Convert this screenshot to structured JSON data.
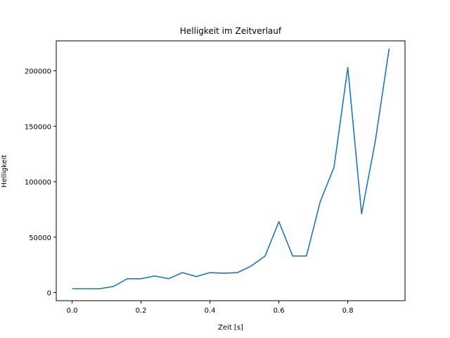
{
  "chart_data": {
    "type": "line",
    "title": "Helligkeit im Zeitverlauf",
    "xlabel": "Zeit [s]",
    "ylabel": "Helligkeit",
    "xlim": [
      -0.046,
      0.966
    ],
    "ylim": [
      -7300,
      227000
    ],
    "grid": false,
    "legend": "none",
    "x_ticks": [
      {
        "value": 0.0,
        "label": "0.0"
      },
      {
        "value": 0.2,
        "label": "0.2"
      },
      {
        "value": 0.4,
        "label": "0.4"
      },
      {
        "value": 0.6,
        "label": "0.6"
      },
      {
        "value": 0.8,
        "label": "0.8"
      }
    ],
    "y_ticks": [
      {
        "value": 0,
        "label": "0"
      },
      {
        "value": 50000,
        "label": "50000"
      },
      {
        "value": 100000,
        "label": "100000"
      },
      {
        "value": 150000,
        "label": "150000"
      },
      {
        "value": 200000,
        "label": "200000"
      }
    ],
    "series": [
      {
        "color": "#1f77b4",
        "x": [
          0.0,
          0.04,
          0.08,
          0.12,
          0.16,
          0.2,
          0.24,
          0.28,
          0.32,
          0.36,
          0.4,
          0.44,
          0.48,
          0.52,
          0.56,
          0.6,
          0.64,
          0.68,
          0.72,
          0.76,
          0.8,
          0.84,
          0.88,
          0.92
        ],
        "y": [
          3500,
          3500,
          3500,
          5500,
          12500,
          12500,
          15000,
          12500,
          18000,
          14500,
          18000,
          17500,
          18000,
          24000,
          33000,
          64000,
          33000,
          33000,
          82000,
          113000,
          203000,
          71000,
          137000,
          220000
        ]
      }
    ]
  }
}
